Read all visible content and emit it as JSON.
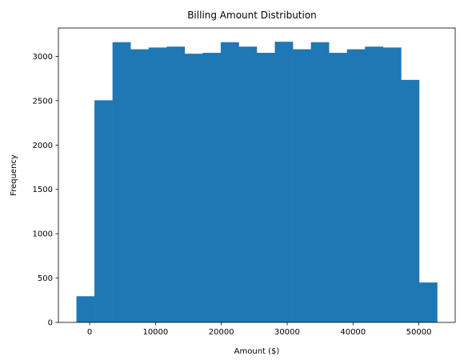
{
  "chart_data": {
    "type": "bar",
    "title": "Billing Amount Distribution",
    "xlabel": "Amount ($)",
    "ylabel": "Frequency",
    "bar_color": "#1f77b4",
    "bins": [
      {
        "x0": -2008,
        "x1": 731,
        "count": 295
      },
      {
        "x0": 731,
        "x1": 3471,
        "count": 2505
      },
      {
        "x0": 3471,
        "x1": 6210,
        "count": 3160
      },
      {
        "x0": 6210,
        "x1": 8950,
        "count": 3080
      },
      {
        "x0": 8950,
        "x1": 11689,
        "count": 3100
      },
      {
        "x0": 11689,
        "x1": 14429,
        "count": 3110
      },
      {
        "x0": 14429,
        "x1": 17168,
        "count": 3030
      },
      {
        "x0": 17168,
        "x1": 19907,
        "count": 3040
      },
      {
        "x0": 19907,
        "x1": 22647,
        "count": 3160
      },
      {
        "x0": 22647,
        "x1": 25386,
        "count": 3110
      },
      {
        "x0": 25386,
        "x1": 28126,
        "count": 3040
      },
      {
        "x0": 28126,
        "x1": 30865,
        "count": 3165
      },
      {
        "x0": 30865,
        "x1": 33605,
        "count": 3080
      },
      {
        "x0": 33605,
        "x1": 36344,
        "count": 3160
      },
      {
        "x0": 36344,
        "x1": 39084,
        "count": 3040
      },
      {
        "x0": 39084,
        "x1": 41823,
        "count": 3080
      },
      {
        "x0": 41823,
        "x1": 44563,
        "count": 3110
      },
      {
        "x0": 44563,
        "x1": 47302,
        "count": 3100
      },
      {
        "x0": 47302,
        "x1": 50042,
        "count": 2735
      },
      {
        "x0": 50042,
        "x1": 52781,
        "count": 450
      }
    ],
    "xlim": [
      -4747,
      55521
    ],
    "ylim": [
      0,
      3320
    ],
    "xticks": [
      0,
      10000,
      20000,
      30000,
      40000,
      50000
    ],
    "yticks": [
      0,
      500,
      1000,
      1500,
      2000,
      2500,
      3000
    ],
    "grid": false
  }
}
